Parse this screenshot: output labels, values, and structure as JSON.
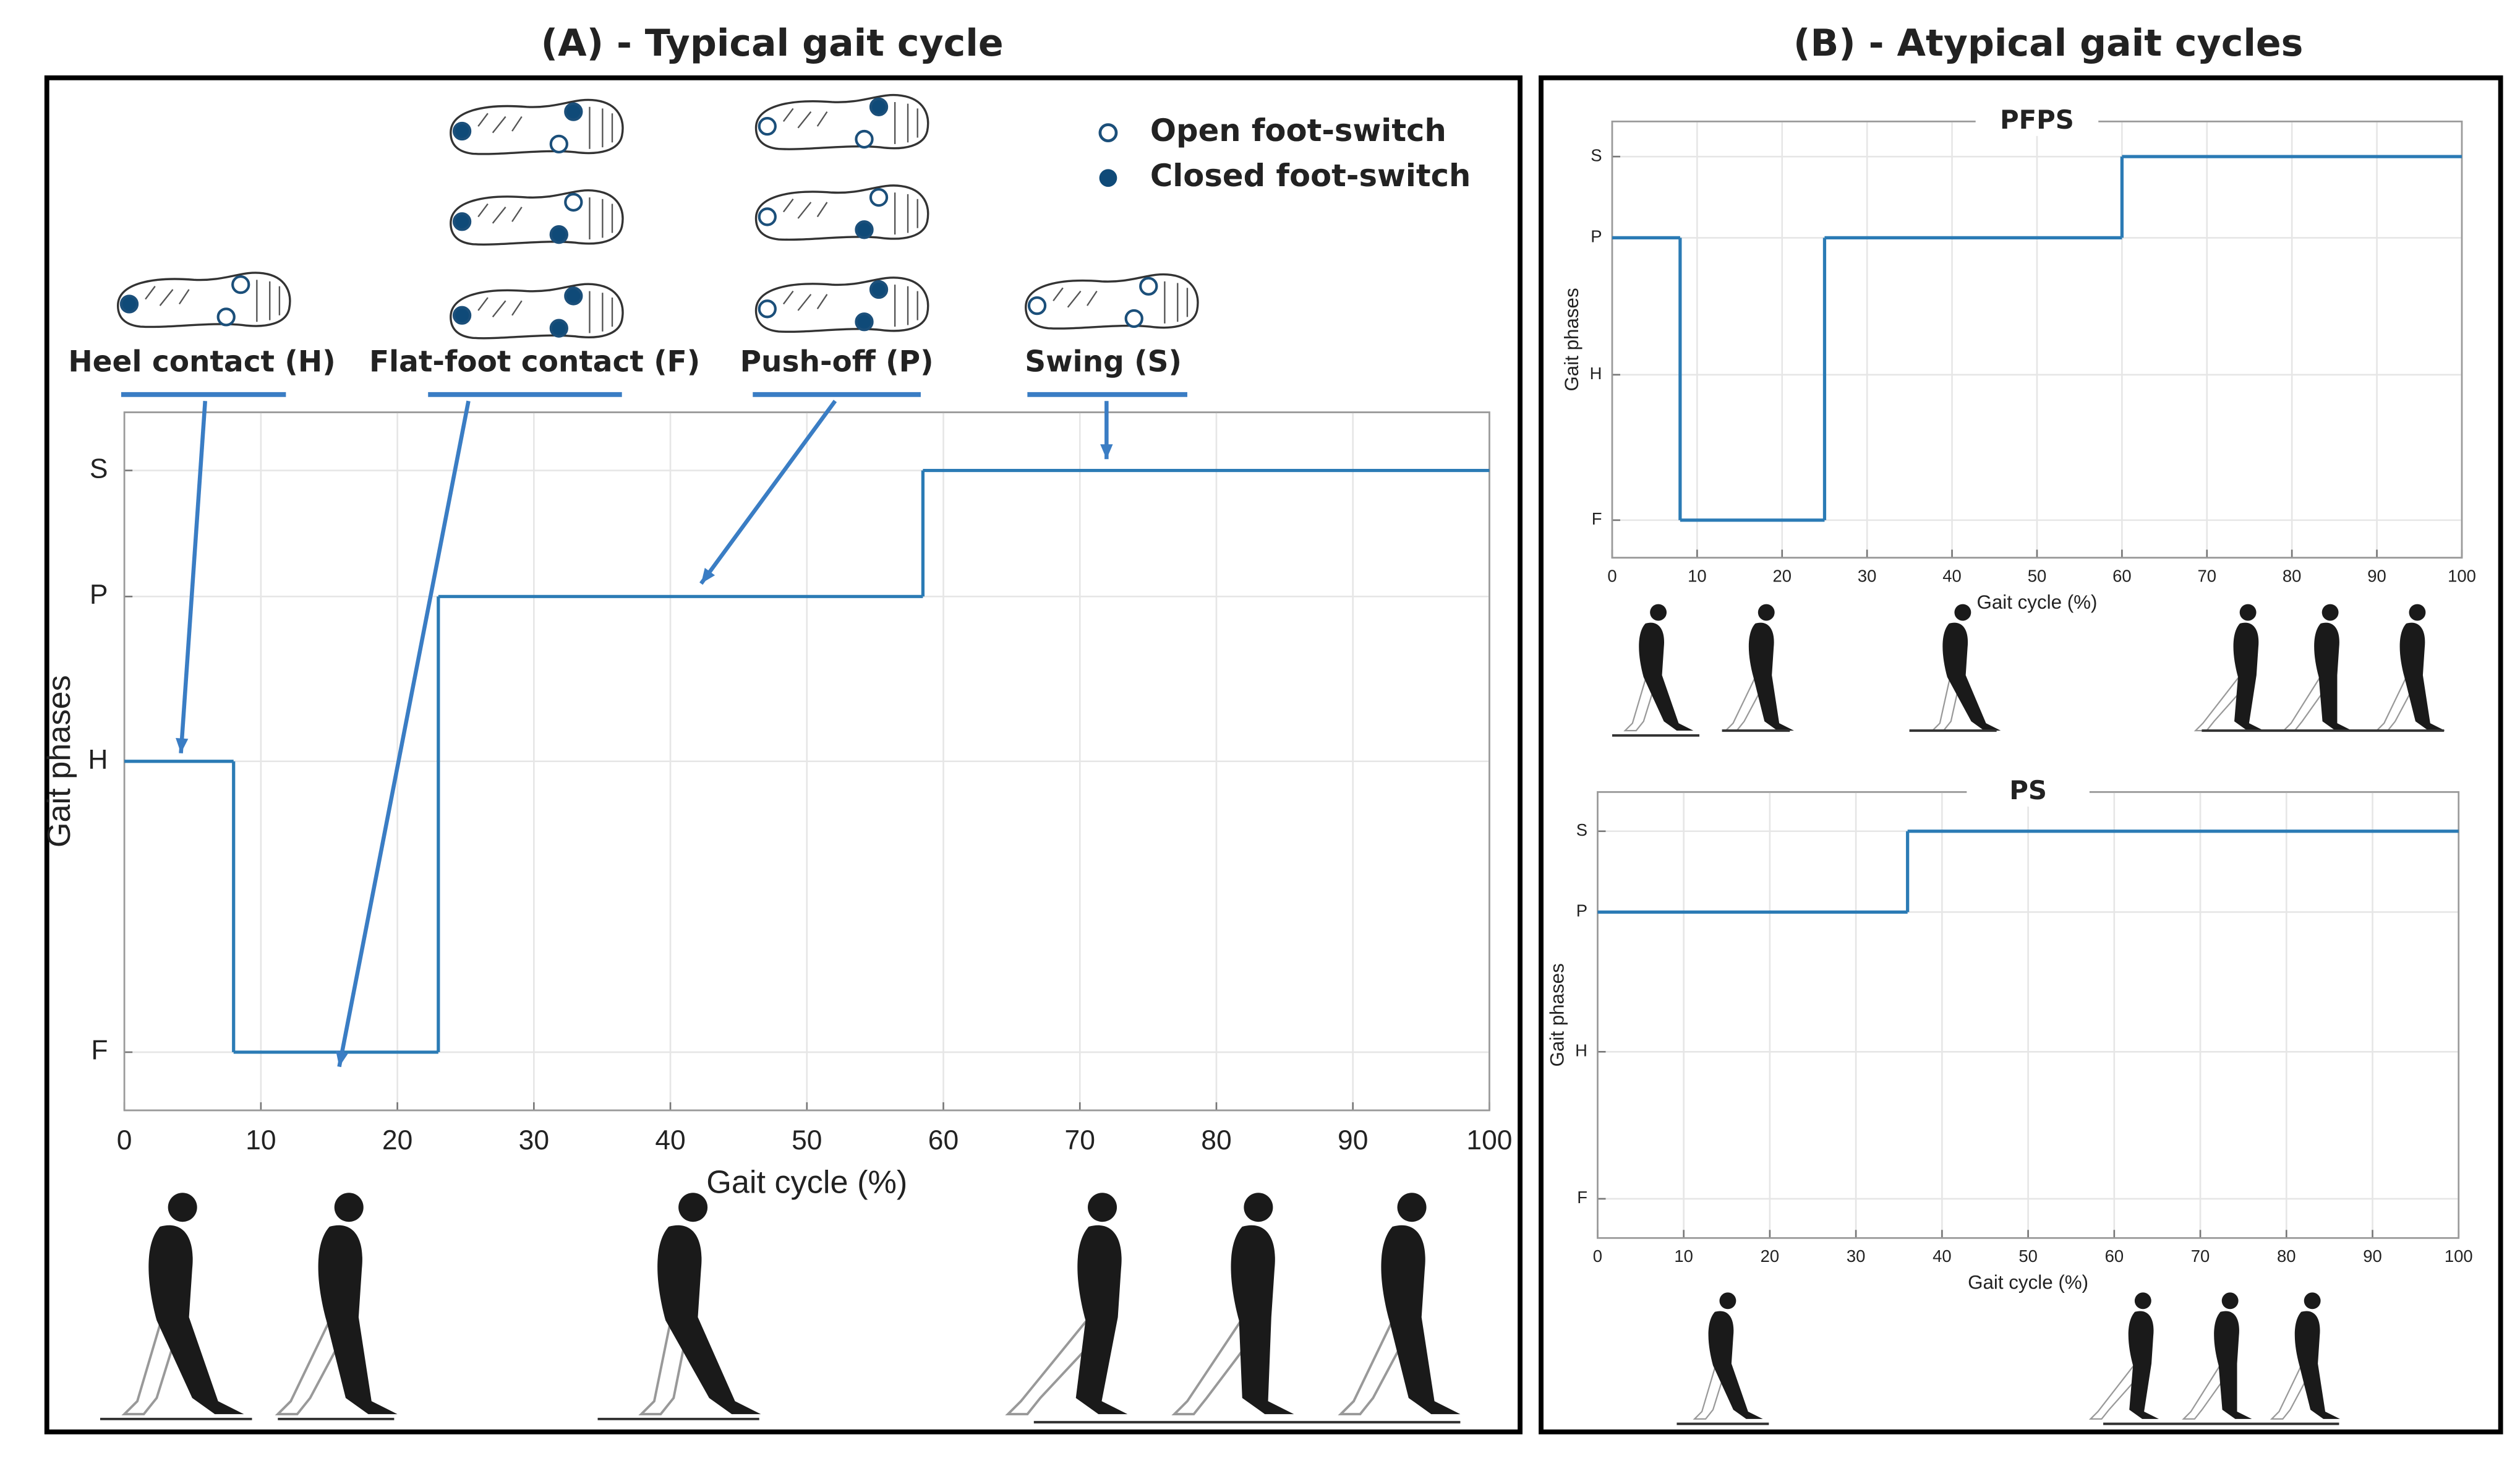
{
  "panels": [
    "(A) - Typical gait cycle",
    "(B) - Atypical gait cycles"
  ],
  "legend": [
    "Open foot-switch",
    "Closed foot-switch"
  ],
  "chart_data": [
    {
      "type": "step",
      "xlabel": "Gait cycle (%)",
      "ylabel": "Gait phases",
      "x": [
        0,
        8,
        23,
        58.5
      ],
      "values": [
        2.5,
        1,
        3.35,
        4
      ],
      "color": "#2b7bb5",
      "xlim": [
        0,
        100
      ],
      "ylim": [
        0.7,
        4.3
      ],
      "xticks": [
        0,
        10,
        20,
        30,
        40,
        50,
        60,
        70,
        80,
        90,
        100
      ],
      "yticks": [
        {
          "value": 1,
          "label": "F"
        },
        {
          "value": 2.5,
          "label": "H"
        },
        {
          "value": 3.35,
          "label": "P"
        },
        {
          "value": 4,
          "label": "S"
        }
      ],
      "grid": true,
      "annotations": [
        "Heel contact (H)",
        "Flat-foot contact (F)",
        "Push-off (P)",
        "Swing (S)"
      ]
    },
    {
      "type": "step",
      "title": "PFPS",
      "xlabel": "Gait cycle (%)",
      "ylabel": "Gait phases",
      "x": [
        0,
        8,
        25,
        60
      ],
      "values": [
        3.33,
        1,
        3.33,
        4
      ],
      "color": "#2b7bb5",
      "xlim": [
        0,
        100
      ],
      "ylim": [
        0.69,
        4.29
      ],
      "xticks": [
        0,
        10,
        20,
        30,
        40,
        50,
        60,
        70,
        80,
        90,
        100
      ],
      "yticks": [
        {
          "value": 1,
          "label": "F"
        },
        {
          "value": 2.2,
          "label": "H"
        },
        {
          "value": 3.33,
          "label": "P"
        },
        {
          "value": 4,
          "label": "S"
        }
      ],
      "grid": true
    },
    {
      "type": "step",
      "title": "PS",
      "xlabel": "Gait cycle (%)",
      "ylabel": "Gait phases",
      "x": [
        0,
        36
      ],
      "values": [
        3.34,
        4
      ],
      "color": "#2b7bb5",
      "xlim": [
        0,
        100
      ],
      "ylim": [
        0.68,
        4.32
      ],
      "xticks": [
        0,
        10,
        20,
        30,
        40,
        50,
        60,
        70,
        80,
        90,
        100
      ],
      "yticks": [
        {
          "value": 1,
          "label": "F"
        },
        {
          "value": 2.2,
          "label": "H"
        },
        {
          "value": 3.34,
          "label": "P"
        },
        {
          "value": 4,
          "label": "S"
        }
      ],
      "grid": true
    }
  ]
}
